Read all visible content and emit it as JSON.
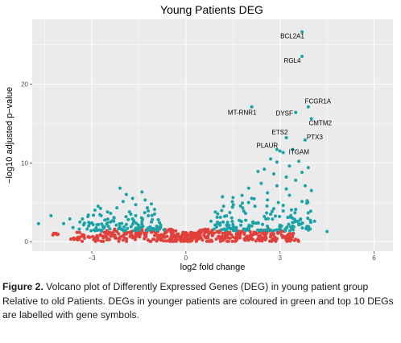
{
  "figure": {
    "caption_label": "Figure 2.",
    "caption_text": " Volcano plot of Differently Expressed Genes (DEG) in young patient group Relative to old Patients. DEGs in younger patients are coloured in green and top 10 DEGs are labelled with gene symbols."
  },
  "chart_data": {
    "type": "scatter",
    "title": "Young Patients DEG",
    "xlabel": "log2 fold change",
    "ylabel": "−log10 adjusted p−value",
    "xlim": [
      -4.9,
      6.6
    ],
    "ylim": [
      -1.2,
      28.2
    ],
    "x_ticks": [
      -3,
      0,
      3,
      6
    ],
    "x_tick_labels": [
      "−3",
      "0",
      "3",
      "6"
    ],
    "y_ticks": [
      0,
      10,
      20
    ],
    "y_tick_labels": [
      "0",
      "10",
      "20"
    ],
    "grid": true,
    "colors": {
      "significant": "#1aa3a6",
      "not_significant": "#e0403a",
      "panel_background": "#ebebeb",
      "gridline": "#ffffff"
    },
    "labelled_genes": [
      {
        "gene": "BCL2A1",
        "x": 3.7,
        "y": 26.6
      },
      {
        "gene": "RGL4",
        "x": 3.7,
        "y": 23.5
      },
      {
        "gene": "FCGR1A",
        "x": 3.9,
        "y": 17.1
      },
      {
        "gene": "MT-RNR1",
        "x": 2.1,
        "y": 17.1
      },
      {
        "gene": "DYSF",
        "x": 3.5,
        "y": 16.4
      },
      {
        "gene": "CMTM2",
        "x": 4.0,
        "y": 15.6
      },
      {
        "gene": "ETS2",
        "x": 3.2,
        "y": 13.2
      },
      {
        "gene": "PTX3",
        "x": 3.8,
        "y": 12.9
      },
      {
        "gene": "PLAUR",
        "x": 2.9,
        "y": 11.7
      },
      {
        "gene": "ITGAM",
        "x": 3.4,
        "y": 11.7
      }
    ],
    "significant_points": [
      [
        3.0,
        11.5
      ],
      [
        3.1,
        11.3
      ],
      [
        2.7,
        10.5
      ],
      [
        2.9,
        10.1
      ],
      [
        3.3,
        9.6
      ],
      [
        2.5,
        9.2
      ],
      [
        3.6,
        10.2
      ],
      [
        3.9,
        9.4
      ],
      [
        2.3,
        8.9
      ],
      [
        2.8,
        8.6
      ],
      [
        3.2,
        8.2
      ],
      [
        3.5,
        7.8
      ],
      [
        2.4,
        7.4
      ],
      [
        2.9,
        7.1
      ],
      [
        3.8,
        7.1
      ],
      [
        4.0,
        6.5
      ],
      [
        2.6,
        6.2
      ],
      [
        3.3,
        5.9
      ],
      [
        2.1,
        5.5
      ],
      [
        3.7,
        5.1
      ],
      [
        2.2,
        4.5
      ],
      [
        2.8,
        4.2
      ],
      [
        3.1,
        3.9
      ],
      [
        1.9,
        3.6
      ],
      [
        2.5,
        3.2
      ],
      [
        3.4,
        3.0
      ],
      [
        1.7,
        2.7
      ],
      [
        2.3,
        2.4
      ],
      [
        3.0,
        2.1
      ],
      [
        3.6,
        2.3
      ],
      [
        4.1,
        2.6
      ],
      [
        4.5,
        1.3
      ],
      [
        2.0,
        6.8
      ],
      [
        1.8,
        4.9
      ],
      [
        2.6,
        5.3
      ],
      [
        3.2,
        6.7
      ],
      [
        3.7,
        8.8
      ],
      [
        2.1,
        2.0
      ],
      [
        1.6,
        1.8
      ],
      [
        1.5,
        2.2
      ],
      [
        2.7,
        3.5
      ],
      [
        3.1,
        4.6
      ],
      [
        3.5,
        4.1
      ],
      [
        1.9,
        1.6
      ],
      [
        2.4,
        1.5
      ],
      [
        2.9,
        1.5
      ],
      [
        3.4,
        1.6
      ],
      [
        3.9,
        1.7
      ],
      [
        1.1,
        3.1
      ],
      [
        1.0,
        2.3
      ],
      [
        0.9,
        1.6
      ],
      [
        1.3,
        1.5
      ],
      [
        1.4,
        3.7
      ],
      [
        1.2,
        4.5
      ],
      [
        1.5,
        5.6
      ],
      [
        0.8,
        2.6
      ],
      [
        -1.9,
        6.0
      ],
      [
        -2.1,
        6.8
      ],
      [
        -1.4,
        6.3
      ],
      [
        -1.3,
        5.3
      ],
      [
        -1.6,
        4.7
      ],
      [
        -1.0,
        4.1
      ],
      [
        -1.8,
        3.8
      ],
      [
        -2.4,
        3.6
      ],
      [
        -2.7,
        3.3
      ],
      [
        -3.3,
        2.9
      ],
      [
        -3.0,
        2.4
      ],
      [
        -2.3,
        2.6
      ],
      [
        -1.7,
        2.9
      ],
      [
        -1.2,
        3.3
      ],
      [
        -2.6,
        1.9
      ],
      [
        -3.6,
        1.8
      ],
      [
        -2.1,
        1.7
      ],
      [
        -1.5,
        1.8
      ],
      [
        -1.1,
        2.5
      ],
      [
        -0.9,
        1.7
      ],
      [
        -2.9,
        4.0
      ],
      [
        -3.7,
        2.9
      ],
      [
        -3.9,
        2.3
      ],
      [
        -4.7,
        2.3
      ],
      [
        -4.3,
        3.3
      ],
      [
        -2.2,
        4.3
      ],
      [
        -1.2,
        3.9
      ],
      [
        -0.8,
        2.1
      ],
      [
        -2.8,
        4.5
      ],
      [
        -3.1,
        2.0
      ],
      [
        -2.5,
        2.4
      ],
      [
        -1.9,
        2.2
      ],
      [
        -1.4,
        2.6
      ],
      [
        -0.7,
        1.5
      ],
      [
        -1.6,
        3.3
      ],
      [
        -2.0,
        5.1
      ],
      [
        -1.1,
        4.8
      ],
      [
        -1.7,
        5.5
      ],
      [
        -3.4,
        1.6
      ]
    ],
    "nonsignificant_points": [
      [
        -3.1,
        0.6
      ],
      [
        -2.9,
        0.5
      ],
      [
        -2.7,
        0.8
      ],
      [
        -2.5,
        0.4
      ],
      [
        -2.3,
        0.9
      ],
      [
        -2.1,
        0.6
      ],
      [
        -1.9,
        1.0
      ],
      [
        -1.7,
        0.5
      ],
      [
        -1.5,
        1.1
      ],
      [
        -1.3,
        0.7
      ],
      [
        -1.1,
        1.2
      ],
      [
        -0.9,
        0.6
      ],
      [
        -0.7,
        0.9
      ],
      [
        -0.5,
        0.4
      ],
      [
        -0.4,
        1.3
      ],
      [
        -0.3,
        0.7
      ],
      [
        -0.2,
        0.3
      ],
      [
        -0.1,
        0.9
      ],
      [
        -0.05,
        0.2
      ],
      [
        0.0,
        0.1
      ],
      [
        0.05,
        0.4
      ],
      [
        0.1,
        0.8
      ],
      [
        0.2,
        0.3
      ],
      [
        0.3,
        1.0
      ],
      [
        0.4,
        0.5
      ],
      [
        0.5,
        1.2
      ],
      [
        0.7,
        0.7
      ],
      [
        0.9,
        1.1
      ],
      [
        1.1,
        0.4
      ],
      [
        1.3,
        0.9
      ],
      [
        1.5,
        0.6
      ],
      [
        1.7,
        1.0
      ],
      [
        1.9,
        0.5
      ],
      [
        2.1,
        0.8
      ],
      [
        2.3,
        0.4
      ],
      [
        2.5,
        0.9
      ],
      [
        2.7,
        0.6
      ],
      [
        2.9,
        0.4
      ],
      [
        3.1,
        0.7
      ],
      [
        3.3,
        0.5
      ],
      [
        3.5,
        0.3
      ],
      [
        -3.4,
        0.3
      ],
      [
        -3.6,
        0.4
      ],
      [
        -4.1,
        0.9
      ],
      [
        -3.3,
        0.9
      ],
      [
        -2.6,
        1.2
      ],
      [
        -2.2,
        1.3
      ],
      [
        -1.8,
        1.2
      ],
      [
        -1.4,
        1.4
      ],
      [
        -1.0,
        1.4
      ],
      [
        -0.6,
        1.3
      ],
      [
        0.6,
        1.4
      ],
      [
        1.0,
        1.3
      ],
      [
        1.4,
        1.2
      ],
      [
        1.8,
        1.3
      ],
      [
        2.2,
        1.2
      ],
      [
        2.6,
        1.3
      ],
      [
        3.0,
        1.2
      ],
      [
        -2.8,
        0.2
      ],
      [
        -2.0,
        0.2
      ],
      [
        -1.2,
        0.2
      ],
      [
        -0.8,
        0.2
      ],
      [
        0.8,
        0.2
      ],
      [
        1.2,
        0.2
      ],
      [
        1.6,
        0.2
      ],
      [
        2.0,
        0.2
      ],
      [
        2.4,
        0.2
      ],
      [
        2.8,
        0.2
      ],
      [
        3.2,
        0.2
      ],
      [
        -0.15,
        0.5
      ],
      [
        0.15,
        0.6
      ],
      [
        -0.25,
        1.0
      ],
      [
        0.25,
        1.1
      ],
      [
        -0.35,
        0.2
      ],
      [
        0.35,
        0.2
      ],
      [
        -2.4,
        0.7
      ],
      [
        -1.6,
        0.8
      ],
      [
        0.45,
        0.9
      ],
      [
        1.2,
        0.6
      ],
      [
        2.0,
        0.7
      ],
      [
        2.8,
        1.0
      ],
      [
        3.4,
        0.8
      ]
    ]
  }
}
